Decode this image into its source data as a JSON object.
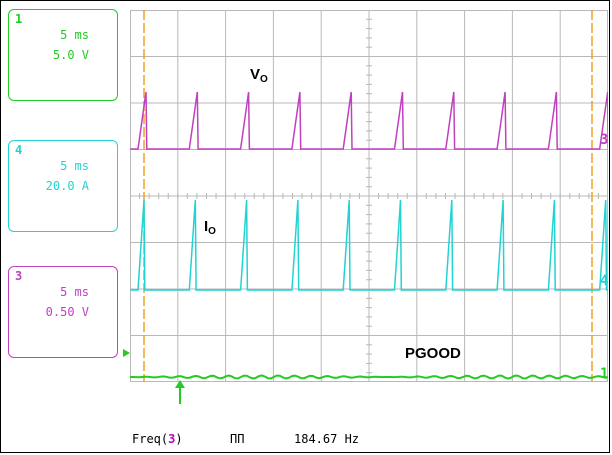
{
  "channels": {
    "ch1": {
      "num": "1",
      "time": "5 ms",
      "scale": "5.0 V",
      "color": "#22cc22"
    },
    "ch4": {
      "num": "4",
      "time": "5 ms",
      "scale": "20.0 A",
      "color": "#22d3d3"
    },
    "ch3": {
      "num": "3",
      "time": "5 ms",
      "scale": "0.50 V",
      "color": "#c040c0"
    }
  },
  "labels": {
    "vo_main": "V",
    "vo_sub": "O",
    "io_main": "I",
    "io_sub": "O",
    "pgood": "PGOOD"
  },
  "markers": {
    "ch3": "3",
    "ch4": "4",
    "ch1": "1"
  },
  "footer": {
    "freq_prefix": "Freq(",
    "freq_channel": "3",
    "freq_suffix": ")",
    "pulse_icon": "ΠΠ",
    "freq_value": "184.67 Hz"
  },
  "colors": {
    "grid": "#b8b8b8",
    "cursor": "#f0a020",
    "vo": "#c040c0",
    "io": "#22d3d3",
    "pgood": "#22cc22"
  }
}
